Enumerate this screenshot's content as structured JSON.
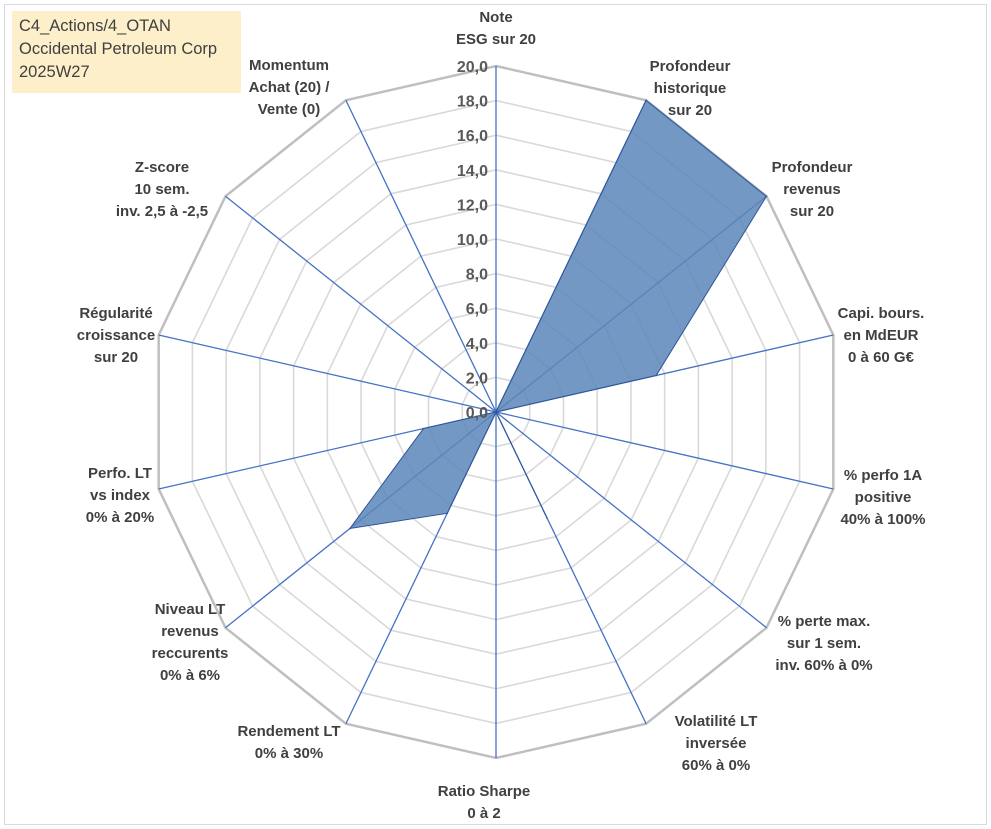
{
  "title_box": {
    "line1": "C4_Actions/4_OTAN",
    "line2": "Occidental Petroleum Corp",
    "line3": "2025W27"
  },
  "chart_data": {
    "type": "radar",
    "rmin": 0,
    "rmax": 20,
    "tick_step": 2,
    "tick_labels": [
      "0,0",
      "2,0",
      "4,0",
      "6,0",
      "8,0",
      "10,0",
      "12,0",
      "14,0",
      "16,0",
      "18,0",
      "20,0"
    ],
    "gridline_color": "#bfbfbf",
    "spoke_color": "#4472c4",
    "fill_color": "#5b86b8",
    "stroke_color": "#2f5597",
    "axes": [
      {
        "label": [
          "Note",
          "ESG sur 20"
        ],
        "value": 0
      },
      {
        "label": [
          "Profondeur",
          "historique",
          "sur 20"
        ],
        "value": 20
      },
      {
        "label": [
          "Profondeur",
          "revenus",
          "sur 20"
        ],
        "value": 20
      },
      {
        "label": [
          "Capi. bours.",
          "en MdEUR",
          "0 à 60 G€"
        ],
        "value": 9.5
      },
      {
        "label": [
          "% perfo 1A",
          "positive",
          "40% à 100%"
        ],
        "value": 0
      },
      {
        "label": [
          "% perte max.",
          "sur 1 sem.",
          "inv. 60% à 0%"
        ],
        "value": 0
      },
      {
        "label": [
          "Volatilité LT",
          "inversée",
          "60% à 0%"
        ],
        "value": 6.8
      },
      {
        "label": [
          "Ratio Sharpe",
          "0 à 2"
        ],
        "value": 0
      },
      {
        "label": [
          "Rendement LT",
          "0% à 30%"
        ],
        "value": 6.5
      },
      {
        "label": [
          "Niveau LT",
          "revenus",
          "reccurents",
          "0% à 6%"
        ],
        "value": 10.8
      },
      {
        "label": [
          "Perfo. LT",
          "vs index",
          "0% à 20%"
        ],
        "value": 4.3
      },
      {
        "label": [
          "Régularité",
          "croissance",
          "sur 20"
        ],
        "value": 0
      },
      {
        "label": [
          "Z-score",
          "10 sem.",
          "inv. 2,5 à -2,5"
        ],
        "value": 0
      },
      {
        "label": [
          "Momentum",
          "Achat (20) /",
          "Vente (0)"
        ],
        "value": 0
      }
    ]
  }
}
